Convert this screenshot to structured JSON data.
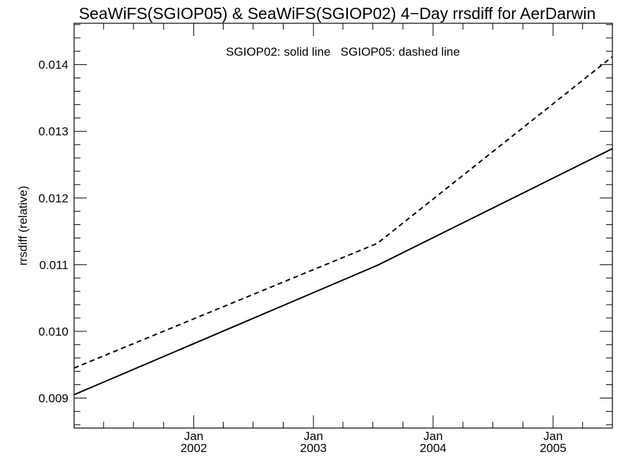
{
  "chart_data": {
    "type": "line",
    "title": "SeaWiFS(SGIOP05) & SeaWiFS(SGIOP02) 4−Day rrsdiff for AerDarwin",
    "ylabel": "rrsdiff (relative)",
    "xlabel": "",
    "legend_text": "SGIOP02: solid line   SGIOP05: dashed line",
    "legend_placement": "top-center",
    "grid": false,
    "xlim": [
      "2001-01-01",
      "2005-07-01"
    ],
    "ylim": [
      0.00855,
      0.01462
    ],
    "x_ticks": [
      {
        "date": "2002-01-01",
        "month": "Jan",
        "year": "2002"
      },
      {
        "date": "2003-01-01",
        "month": "Jan",
        "year": "2003"
      },
      {
        "date": "2004-01-01",
        "month": "Jan",
        "year": "2004"
      },
      {
        "date": "2005-01-01",
        "month": "Jan",
        "year": "2005"
      }
    ],
    "y_ticks": [
      "0.009",
      "0.010",
      "0.011",
      "0.012",
      "0.013",
      "0.014"
    ],
    "series": [
      {
        "name": "SGIOP02",
        "style": "solid",
        "color": "#000000",
        "points": [
          {
            "x": "2001-01-01",
            "y": 0.00905
          },
          {
            "x": "2003-07-15",
            "y": 0.01099
          },
          {
            "x": "2005-07-01",
            "y": 0.01274
          }
        ]
      },
      {
        "name": "SGIOP05",
        "style": "dashed",
        "color": "#000000",
        "points": [
          {
            "x": "2001-01-01",
            "y": 0.00945
          },
          {
            "x": "2003-07-15",
            "y": 0.01132
          },
          {
            "x": "2005-07-01",
            "y": 0.01412
          }
        ]
      }
    ]
  }
}
